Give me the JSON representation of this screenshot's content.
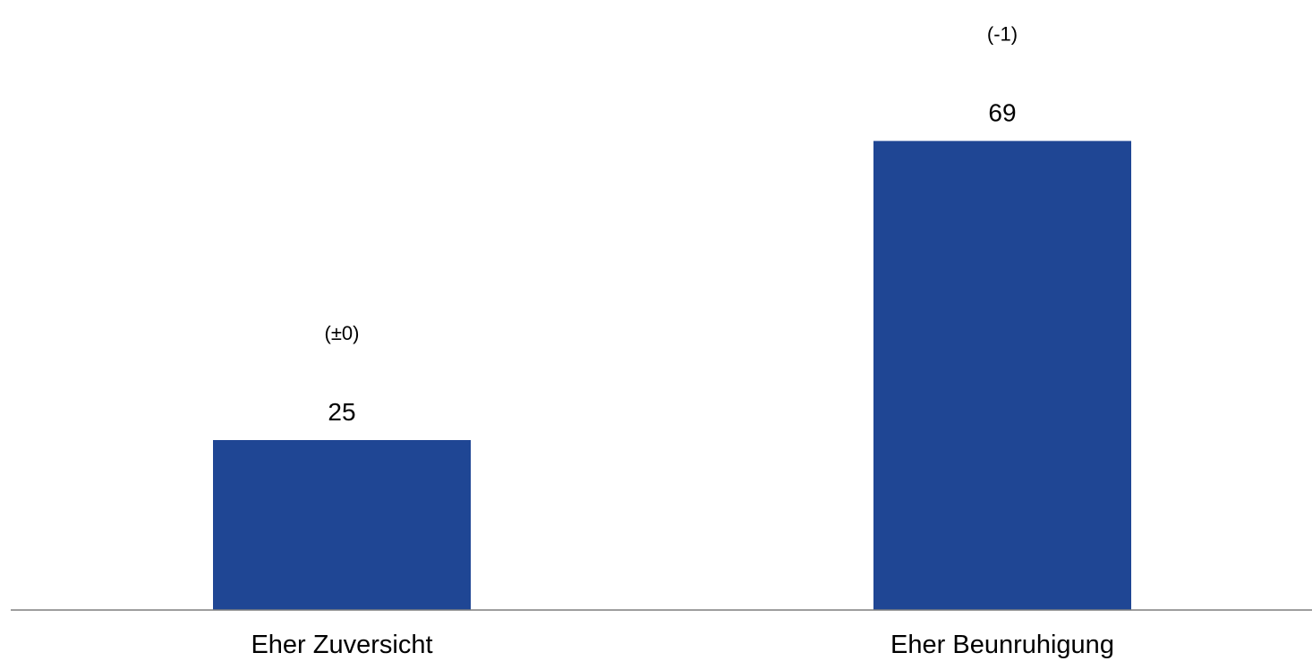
{
  "chart_data": {
    "type": "bar",
    "categories": [
      "Eher Zuversicht",
      "Eher Beunruhigung"
    ],
    "values": [
      25,
      69
    ],
    "changes": [
      "(±0)",
      "(-1)"
    ],
    "value_labels": [
      "25",
      "69"
    ],
    "bar_color": "#1f4694",
    "axis_color": "#7f7f7f",
    "ylim": [
      0,
      80
    ],
    "grid": false,
    "legend": "none"
  }
}
